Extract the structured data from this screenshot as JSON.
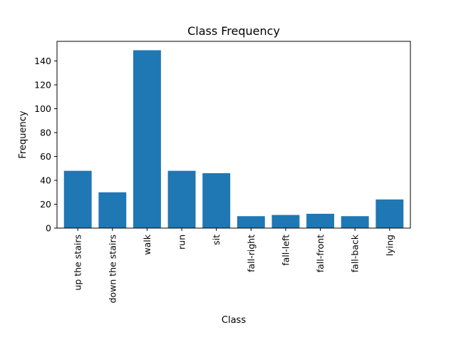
{
  "chart_data": {
    "type": "bar",
    "title": "Class Frequency",
    "xlabel": "Class",
    "ylabel": "Frequency",
    "categories": [
      "up the stairs",
      "down the stairs",
      "walk",
      "run",
      "sit",
      "fall-right",
      "fall-left",
      "fall-front",
      "fall-back",
      "lying"
    ],
    "values": [
      48,
      30,
      149,
      48,
      46,
      10,
      11,
      12,
      10,
      24
    ],
    "ylim": [
      0,
      156.45
    ],
    "yticks": [
      0,
      20,
      40,
      60,
      80,
      100,
      120,
      140
    ],
    "bar_color": "#1f77b4",
    "grid": false,
    "legend": "none"
  }
}
